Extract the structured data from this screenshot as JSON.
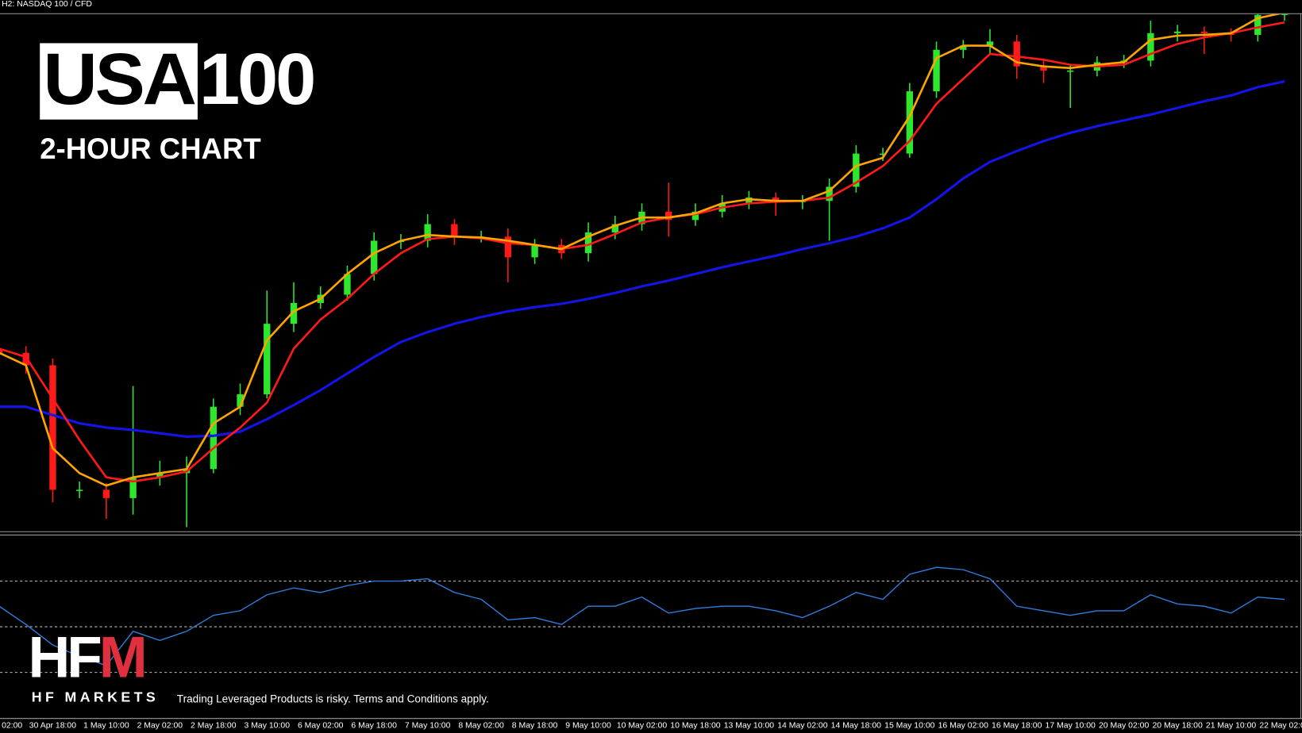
{
  "header": {
    "symbol_info": "H2: NASDAQ 100 / CFD",
    "title_boxed": "USA",
    "title_rest": "100",
    "subtitle": "2-HOUR CHART"
  },
  "branding": {
    "logo": "HFM",
    "company": "HF MARKETS",
    "disclaimer": "Trading Leveraged Products is risky. Terms and Conditions apply."
  },
  "chart_data": [
    {
      "type": "candlestick",
      "ylim": [
        0,
        630
      ],
      "bull_color": "#2ee62e",
      "bear_color": "#ff1a1a",
      "categories": [
        "02:00",
        null,
        "30 Apr 18:00",
        null,
        "1 May 10:00",
        null,
        "2 May 02:00",
        null,
        "2 May 18:00",
        null,
        "3 May 10:00",
        null,
        "6 May 02:00",
        null,
        "6 May 18:00",
        null,
        "7 May 10:00",
        null,
        "8 May 02:00",
        null,
        "8 May 18:00",
        null,
        "9 May 10:00",
        null,
        "10 May 02:00",
        null,
        "10 May 18:00",
        null,
        "13 May 10:00",
        null,
        "14 May 02:00",
        null,
        "14 May 18:00",
        null,
        "15 May 10:00",
        null,
        "16 May 02:00",
        null,
        "16 May 18:00",
        null,
        "17 May 10:00",
        null,
        "20 May 02:00",
        null,
        "20 May 18:00",
        null,
        "21 May 10:00",
        null,
        "22 May 02:00"
      ],
      "open": [
        220,
        215,
        200,
        50,
        50,
        40,
        65,
        70,
        75,
        150,
        165,
        250,
        275,
        285,
        310,
        350,
        350,
        370,
        355,
        355,
        330,
        345,
        335,
        360,
        370,
        385,
        375,
        385,
        395,
        402,
        398,
        398,
        415,
        455,
        455,
        530,
        580,
        585,
        590,
        560,
        555,
        555,
        565,
        567,
        600,
        602,
        600,
        598,
        622
      ],
      "high": [
        228,
        223,
        208,
        60,
        58,
        175,
        85,
        90,
        160,
        178,
        290,
        300,
        295,
        320,
        360,
        358,
        382,
        376,
        362,
        365,
        352,
        352,
        372,
        380,
        395,
        420,
        395,
        405,
        410,
        408,
        405,
        425,
        465,
        462,
        540,
        590,
        592,
        605,
        598,
        568,
        562,
        572,
        574,
        615,
        610,
        608,
        606,
        630,
        630
      ],
      "low": [
        205,
        190,
        35,
        40,
        15,
        20,
        55,
        5,
        70,
        140,
        160,
        240,
        268,
        278,
        302,
        340,
        342,
        345,
        348,
        300,
        322,
        328,
        325,
        352,
        362,
        355,
        368,
        378,
        388,
        380,
        388,
        350,
        408,
        446,
        450,
        522,
        570,
        576,
        545,
        540,
        510,
        548,
        558,
        560,
        590,
        575,
        590,
        590,
        615
      ],
      "close": [
        215,
        200,
        50,
        50,
        40,
        65,
        70,
        75,
        150,
        165,
        250,
        275,
        285,
        310,
        350,
        350,
        370,
        355,
        355,
        330,
        345,
        335,
        360,
        370,
        385,
        375,
        385,
        395,
        402,
        398,
        398,
        415,
        455,
        455,
        530,
        580,
        585,
        590,
        560,
        555,
        555,
        565,
        567,
        600,
        602,
        600,
        598,
        622,
        626
      ],
      "series": [
        {
          "color": "#1414e6",
          "values": [
            150,
            150,
            140,
            130,
            125,
            122,
            118,
            114,
            115,
            120,
            135,
            152,
            170,
            190,
            210,
            228,
            240,
            250,
            258,
            265,
            270,
            274,
            280,
            287,
            295,
            302,
            310,
            318,
            325,
            332,
            340,
            347,
            355,
            365,
            378,
            400,
            425,
            445,
            458,
            470,
            480,
            488,
            495,
            502,
            510,
            518,
            525,
            535,
            542
          ]
        },
        {
          "color": "#ff1a1a",
          "values": [
            220,
            210,
            160,
            110,
            65,
            60,
            65,
            72,
            100,
            125,
            155,
            220,
            255,
            280,
            310,
            335,
            352,
            355,
            353,
            347,
            345,
            340,
            345,
            358,
            372,
            378,
            382,
            390,
            395,
            397,
            398,
            402,
            420,
            440,
            470,
            515,
            545,
            575,
            572,
            568,
            562,
            560,
            562,
            575,
            587,
            595,
            600,
            607,
            613
          ]
        },
        {
          "color": "#ffa500",
          "values": [
            215,
            200,
            100,
            70,
            55,
            65,
            70,
            75,
            130,
            150,
            230,
            265,
            280,
            310,
            335,
            350,
            357,
            355,
            354,
            350,
            345,
            340,
            355,
            368,
            378,
            378,
            383,
            395,
            400,
            398,
            398,
            410,
            440,
            450,
            500,
            570,
            585,
            585,
            565,
            560,
            558,
            562,
            565,
            592,
            597,
            598,
            600,
            618,
            625
          ]
        }
      ]
    },
    {
      "type": "line",
      "ylim": [
        10,
        90
      ],
      "levels": [
        30,
        50,
        70
      ],
      "color": "#2f7fe0",
      "level_color": "#bbbbbb",
      "values": [
        59,
        51,
        42,
        37,
        33,
        48,
        44,
        48,
        55,
        57,
        64,
        67,
        65,
        68,
        70,
        70,
        71,
        65,
        62,
        53,
        54,
        51,
        59,
        59,
        63,
        56,
        58,
        59,
        59,
        57,
        54,
        59,
        65,
        62,
        73,
        76,
        75,
        71,
        59,
        57,
        55,
        57,
        57,
        64,
        60,
        59,
        56,
        63,
        62
      ]
    }
  ]
}
